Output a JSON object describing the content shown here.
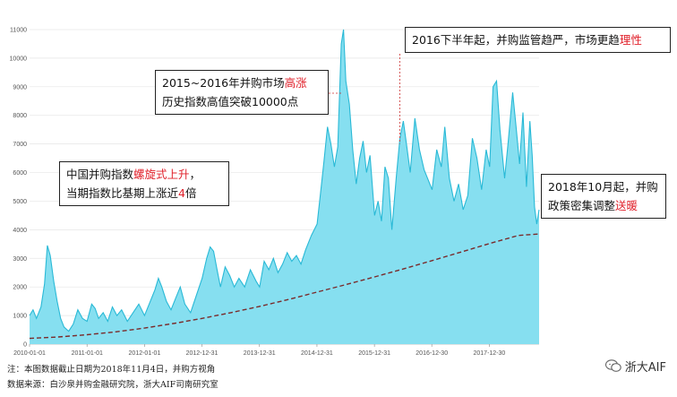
{
  "chart_data": {
    "type": "area",
    "title": "",
    "xlabel": "",
    "ylabel": "",
    "ylim": [
      0,
      11000
    ],
    "yticks": [
      0,
      1000,
      2000,
      3000,
      4000,
      5000,
      6000,
      7000,
      8000,
      9000,
      10000,
      11000
    ],
    "ytick_labels": [
      "0",
      "1000",
      "2000",
      "3000",
      "4000",
      "5000",
      "6000",
      "7000",
      "8000",
      "9000",
      "10000",
      "11000"
    ],
    "x_ticks": [
      "2010-01-01",
      "2011-01-01",
      "2012-01-01",
      "2012-12-31",
      "2013-12-31",
      "2014-12-31",
      "2015-12-31",
      "2016-12-30",
      "2017-12-30"
    ],
    "x_range": [
      "2010-01-01",
      "2018-11-04"
    ],
    "grid": "horizontal",
    "colors": {
      "area_fill": "#86dff0",
      "area_line": "#29b9d6",
      "trend": "#7a2a2a",
      "grid": "#e6e6e6",
      "highlight": "#e0202a"
    },
    "series": [
      {
        "values": [
          [
            2010.0,
            1000
          ],
          [
            2010.06,
            1200
          ],
          [
            2010.12,
            900
          ],
          [
            2010.2,
            1300
          ],
          [
            2010.26,
            2100
          ],
          [
            2010.31,
            3450
          ],
          [
            2010.36,
            3100
          ],
          [
            2010.42,
            2200
          ],
          [
            2010.48,
            1500
          ],
          [
            2010.54,
            900
          ],
          [
            2010.6,
            600
          ],
          [
            2010.68,
            450
          ],
          [
            2010.76,
            700
          ],
          [
            2010.84,
            1200
          ],
          [
            2010.92,
            900
          ],
          [
            2011.0,
            800
          ],
          [
            2011.08,
            1400
          ],
          [
            2011.14,
            1250
          ],
          [
            2011.2,
            900
          ],
          [
            2011.28,
            1100
          ],
          [
            2011.36,
            800
          ],
          [
            2011.44,
            1300
          ],
          [
            2011.52,
            1000
          ],
          [
            2011.6,
            1200
          ],
          [
            2011.7,
            800
          ],
          [
            2011.8,
            1100
          ],
          [
            2011.9,
            1400
          ],
          [
            2012.0,
            1000
          ],
          [
            2012.1,
            1500
          ],
          [
            2012.18,
            1900
          ],
          [
            2012.24,
            2300
          ],
          [
            2012.3,
            2000
          ],
          [
            2012.38,
            1500
          ],
          [
            2012.46,
            1200
          ],
          [
            2012.54,
            1600
          ],
          [
            2012.62,
            2000
          ],
          [
            2012.7,
            1400
          ],
          [
            2012.8,
            1100
          ],
          [
            2012.9,
            1700
          ],
          [
            2013.0,
            2300
          ],
          [
            2013.08,
            3000
          ],
          [
            2013.14,
            3400
          ],
          [
            2013.2,
            3250
          ],
          [
            2013.26,
            2600
          ],
          [
            2013.32,
            2000
          ],
          [
            2013.4,
            2700
          ],
          [
            2013.48,
            2400
          ],
          [
            2013.56,
            2000
          ],
          [
            2013.64,
            2300
          ],
          [
            2013.74,
            2000
          ],
          [
            2013.84,
            2600
          ],
          [
            2013.94,
            2200
          ],
          [
            2014.0,
            2000
          ],
          [
            2014.08,
            2900
          ],
          [
            2014.16,
            2600
          ],
          [
            2014.24,
            3000
          ],
          [
            2014.32,
            2500
          ],
          [
            2014.4,
            2800
          ],
          [
            2014.48,
            3200
          ],
          [
            2014.56,
            2900
          ],
          [
            2014.64,
            3100
          ],
          [
            2014.72,
            2800
          ],
          [
            2014.8,
            3300
          ],
          [
            2014.9,
            3800
          ],
          [
            2015.0,
            4200
          ],
          [
            2015.06,
            5300
          ],
          [
            2015.12,
            6400
          ],
          [
            2015.18,
            7600
          ],
          [
            2015.24,
            7000
          ],
          [
            2015.3,
            6200
          ],
          [
            2015.36,
            6900
          ],
          [
            2015.42,
            10500
          ],
          [
            2015.46,
            11000
          ],
          [
            2015.5,
            9200
          ],
          [
            2015.56,
            8400
          ],
          [
            2015.62,
            6800
          ],
          [
            2015.68,
            5600
          ],
          [
            2015.74,
            6500
          ],
          [
            2015.8,
            7100
          ],
          [
            2015.86,
            6000
          ],
          [
            2015.92,
            6600
          ],
          [
            2016.0,
            4500
          ],
          [
            2016.06,
            5000
          ],
          [
            2016.12,
            4300
          ],
          [
            2016.18,
            6200
          ],
          [
            2016.24,
            5800
          ],
          [
            2016.3,
            4000
          ],
          [
            2016.38,
            5900
          ],
          [
            2016.44,
            7200
          ],
          [
            2016.5,
            7800
          ],
          [
            2016.56,
            6900
          ],
          [
            2016.62,
            6000
          ],
          [
            2016.7,
            7900
          ],
          [
            2016.78,
            6800
          ],
          [
            2016.86,
            6100
          ],
          [
            2016.94,
            5700
          ],
          [
            2017.0,
            5400
          ],
          [
            2017.08,
            6800
          ],
          [
            2017.16,
            6200
          ],
          [
            2017.22,
            7600
          ],
          [
            2017.3,
            5800
          ],
          [
            2017.38,
            5000
          ],
          [
            2017.46,
            5600
          ],
          [
            2017.54,
            4700
          ],
          [
            2017.62,
            5200
          ],
          [
            2017.7,
            7200
          ],
          [
            2017.78,
            6500
          ],
          [
            2017.86,
            5400
          ],
          [
            2017.94,
            6800
          ],
          [
            2018.0,
            6200
          ],
          [
            2018.06,
            9000
          ],
          [
            2018.12,
            9200
          ],
          [
            2018.18,
            7500
          ],
          [
            2018.26,
            5800
          ],
          [
            2018.32,
            7000
          ],
          [
            2018.4,
            8800
          ],
          [
            2018.46,
            7600
          ],
          [
            2018.52,
            6300
          ],
          [
            2018.58,
            8100
          ],
          [
            2018.64,
            5500
          ],
          [
            2018.7,
            7800
          ],
          [
            2018.74,
            6600
          ],
          [
            2018.78,
            4800
          ],
          [
            2018.82,
            4200
          ],
          [
            2018.86,
            4700
          ]
        ]
      },
      {
        "type": "trend",
        "style": "dashed",
        "values": [
          [
            2010.0,
            200
          ],
          [
            2010.5,
            250
          ],
          [
            2011.0,
            330
          ],
          [
            2011.5,
            430
          ],
          [
            2012.0,
            560
          ],
          [
            2012.5,
            720
          ],
          [
            2013.0,
            900
          ],
          [
            2013.5,
            1100
          ],
          [
            2014.0,
            1320
          ],
          [
            2014.5,
            1560
          ],
          [
            2015.0,
            1820
          ],
          [
            2015.5,
            2080
          ],
          [
            2016.0,
            2350
          ],
          [
            2016.5,
            2630
          ],
          [
            2017.0,
            2920
          ],
          [
            2017.5,
            3220
          ],
          [
            2018.0,
            3520
          ],
          [
            2018.5,
            3800
          ],
          [
            2018.86,
            3850
          ]
        ]
      }
    ],
    "annotations": [
      {
        "id": "annotation-2015",
        "lines": [
          [
            "2015~2016年并购市场",
            "高涨"
          ],
          [
            "历史指数高值突破10000点"
          ]
        ]
      },
      {
        "id": "annotation-2016h2",
        "lines": [
          [
            "2016下半年起，并购监管趋严，市场更趋",
            "理性"
          ]
        ]
      },
      {
        "id": "annotation-spiral",
        "lines": [
          [
            "中国并购指数",
            "螺旋式上升",
            "，"
          ],
          [
            "当期指数比基期上涨近",
            "4",
            "倍"
          ]
        ]
      },
      {
        "id": "annotation-2018-10",
        "lines": [
          [
            "2018年10月起，并购"
          ],
          [
            "政策密集调整",
            "送暖"
          ]
        ]
      }
    ]
  },
  "footer": {
    "note": "注：本图数据截止日期为2018年11月4日，并购方视角",
    "source": "数据来源：白沙泉并购金融研究院，浙大AIF司南研究室"
  },
  "brand": {
    "icon": "chat-bubble-icon",
    "name": "浙大AIF"
  }
}
